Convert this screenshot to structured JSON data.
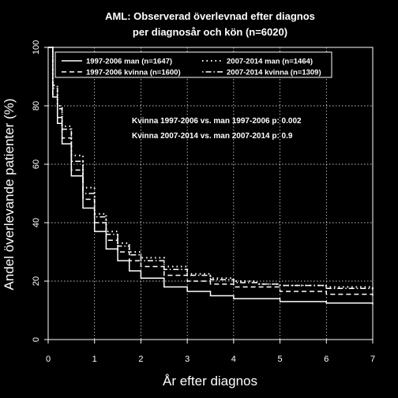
{
  "chart_data": {
    "type": "line",
    "title": "AML: Observerad överlevnad efter diagnos",
    "subtitle": "per diagnosår och kön (n=6020)",
    "xlabel": "År efter diagnos",
    "ylabel": "Andel överlevande patienter (%)",
    "xlim": [
      0,
      7
    ],
    "ylim": [
      0,
      100
    ],
    "xticks": [
      0,
      1,
      2,
      3,
      4,
      5,
      6,
      7
    ],
    "yticks": [
      0,
      20,
      40,
      60,
      80,
      100
    ],
    "grid": true,
    "legend_position": "top",
    "annotations": [
      "Kvinna 1997-2006 vs. man 1997-2006 p: 0.002",
      "Kvinna 2007-2014  vs. man 2007-2014 p: 0.9"
    ],
    "series": [
      {
        "name": "1997-2006 man (n=1647)",
        "style": "solid",
        "x": [
          0,
          0.1,
          0.2,
          0.3,
          0.5,
          0.75,
          1.0,
          1.25,
          1.5,
          1.75,
          2.0,
          2.5,
          3.0,
          3.5,
          4.0,
          5.0,
          6.0,
          7.0
        ],
        "y": [
          100,
          83,
          74,
          67,
          56,
          45,
          37,
          31,
          27,
          23.5,
          21,
          18,
          16.5,
          15,
          14,
          13,
          12.5,
          12
        ]
      },
      {
        "name": "1997-2006 kvinna (n=1600)",
        "style": "dashed",
        "x": [
          0,
          0.1,
          0.2,
          0.3,
          0.5,
          0.75,
          1.0,
          1.25,
          1.5,
          1.75,
          2.0,
          2.5,
          3.0,
          3.5,
          4.0,
          5.0,
          6.0,
          7.0
        ],
        "y": [
          100,
          84,
          76,
          69,
          58,
          48,
          40,
          34,
          30,
          27,
          25,
          22,
          20,
          19,
          18,
          16.5,
          15.5,
          15
        ]
      },
      {
        "name": "2007-2014 man (n=1464)",
        "style": "dotted",
        "x": [
          0,
          0.1,
          0.2,
          0.3,
          0.5,
          0.75,
          1.0,
          1.25,
          1.5,
          1.75,
          2.0,
          2.5,
          3.0,
          3.5,
          4.0,
          4.5,
          5.0,
          6.0,
          7.0
        ],
        "y": [
          100,
          87,
          80,
          73,
          63,
          52,
          43,
          37,
          33,
          30,
          28,
          25,
          22.5,
          21,
          20,
          19,
          18.5,
          18,
          17.5
        ]
      },
      {
        "name": "2007-2014 kvinna (n=1309)",
        "style": "dotdash",
        "x": [
          0,
          0.1,
          0.2,
          0.3,
          0.5,
          0.75,
          1.0,
          1.25,
          1.5,
          1.75,
          2.0,
          2.5,
          3.0,
          3.5,
          4.0,
          4.5,
          5.0,
          6.0,
          7.0
        ],
        "y": [
          100,
          86,
          79,
          72,
          61,
          50,
          42,
          36,
          32,
          29,
          27,
          24,
          22,
          20.5,
          19.5,
          19,
          18.5,
          17.5,
          17
        ]
      }
    ]
  }
}
